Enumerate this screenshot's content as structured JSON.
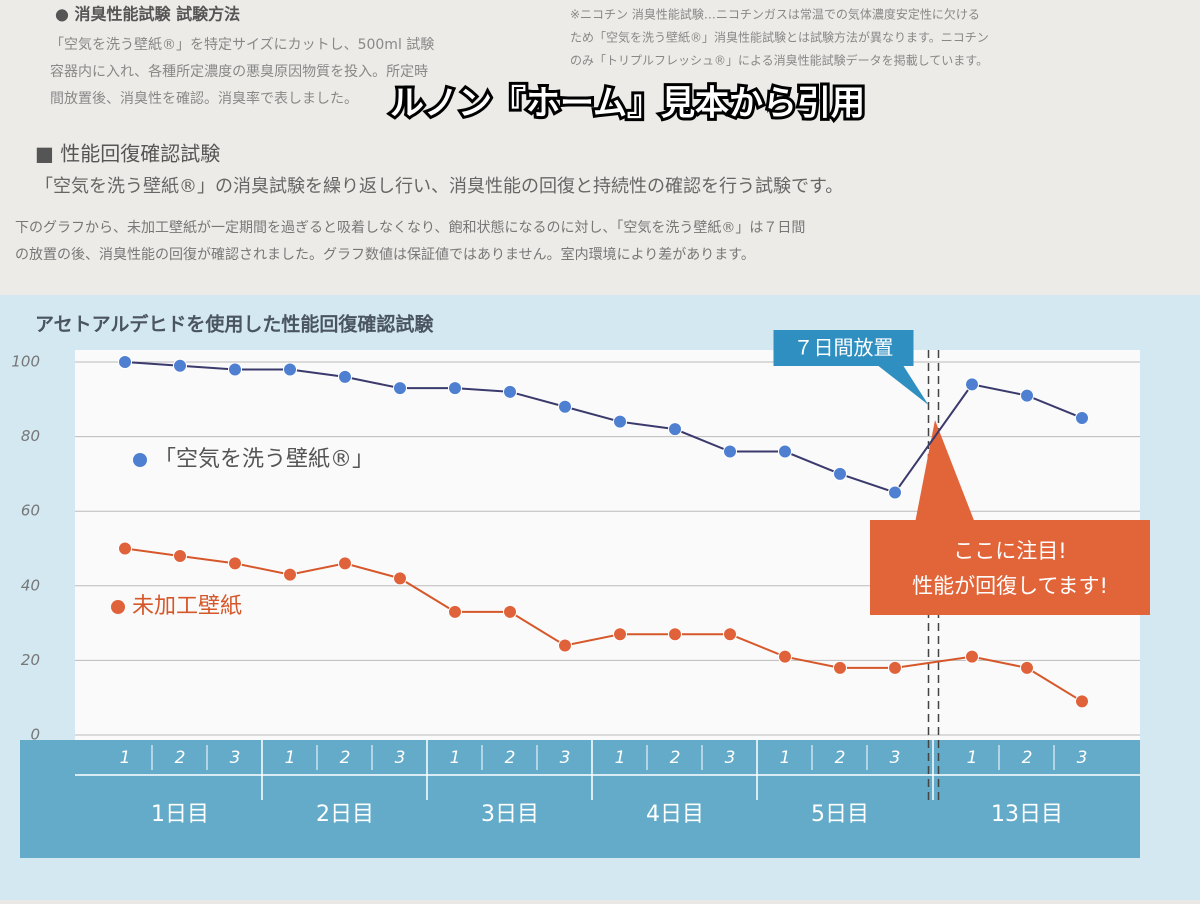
{
  "header": {
    "section1": "● 消臭性能試験 試験方法",
    "text1": [
      "「空気を洗う壁紙®」を特定サイズにカットし、500ml 試験",
      "容器内に入れ、各種所定濃度の悪臭原因物質を投入。所定時",
      "間放置後、消臭性を確認。消臭率で表しました。"
    ],
    "note": [
      "※ニコチン 消臭性能試験…ニコチンガスは常温での気体濃度安定性に欠ける",
      "ため「空気を洗う壁紙®」消臭性能試験とは試験方法が異なります。ニコチン",
      "のみ「トリプルフレッシュ®」による消臭性能試験データを掲載しています。"
    ],
    "overlay": "ルノン『ホーム』見本から引用",
    "section2": "■ 性能回復確認試験",
    "lead": "「空気を洗う壁紙®」の消臭試験を繰り返し行い、消臭性能の回復と持続性の確認を行う試験です。",
    "body": [
      "下のグラフから、未加工壁紙が一定期間を過ぎると吸着しなくなり、飽和状態になるのに対し、「空気を洗う壁紙®」は７日間",
      "の放置の後、消臭性能の回復が確認されました。グラフ数値は保証値ではありません。室内環境により差があります。"
    ]
  },
  "chart_data": {
    "type": "line",
    "title": "アセトアルデヒドを使用した性能回復確認試験",
    "categories": [
      "1",
      "2",
      "3",
      "1",
      "2",
      "3",
      "1",
      "2",
      "3",
      "1",
      "2",
      "3",
      "1",
      "2",
      "3",
      "1",
      "2",
      "3"
    ],
    "groups": [
      "1日目",
      "2日目",
      "3日目",
      "4日目",
      "5日目",
      "13日目"
    ],
    "series": [
      {
        "name": "「空気を洗う壁紙®」",
        "color": "#3b3a6c",
        "marker": "#4f7fd0",
        "values": [
          100,
          99,
          98,
          98,
          96,
          93,
          93,
          92,
          88,
          84,
          82,
          76,
          76,
          70,
          65,
          94,
          91,
          85
        ]
      },
      {
        "name": "未加工壁紙",
        "color": "#d6582a",
        "marker": "#e0623a",
        "values": [
          50,
          48,
          46,
          43,
          46,
          42,
          33,
          33,
          24,
          27,
          27,
          27,
          21,
          18,
          18,
          21,
          18,
          9
        ]
      }
    ],
    "ylim": [
      0,
      100
    ],
    "yticks": [
      0,
      20,
      40,
      60,
      80,
      100
    ],
    "grid": true,
    "annotations": {
      "pause": "７日間放置",
      "callout": [
        "ここに注目!",
        "性能が回復してます!"
      ]
    }
  }
}
